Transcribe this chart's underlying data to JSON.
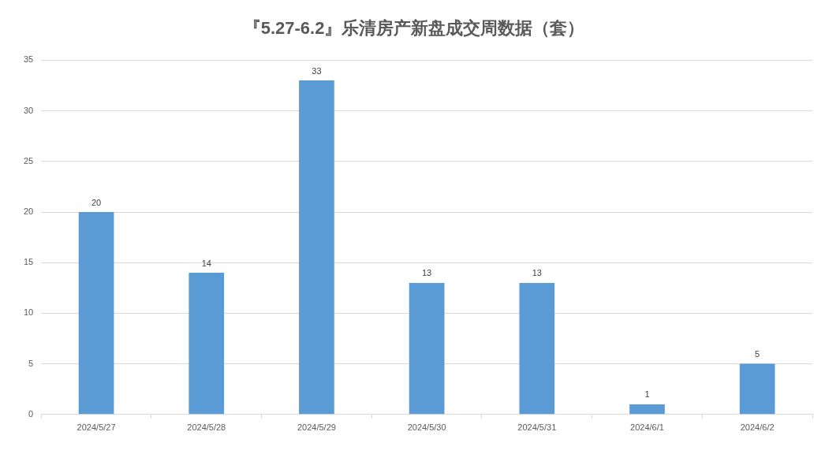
{
  "chart_data": {
    "type": "bar",
    "title": "『5.27-6.2』乐清房产新盘成交周数据（套）",
    "categories": [
      "2024/5/27",
      "2024/5/28",
      "2024/5/29",
      "2024/5/30",
      "2024/5/31",
      "2024/6/1",
      "2024/6/2"
    ],
    "values": [
      20,
      14,
      33,
      13,
      13,
      1,
      5
    ],
    "color": "#5b9bd5",
    "ylim": [
      0,
      35
    ],
    "yticks": [
      0,
      5,
      10,
      15,
      20,
      25,
      30,
      35
    ],
    "grid": "y",
    "legend": false,
    "data_labels": true
  }
}
